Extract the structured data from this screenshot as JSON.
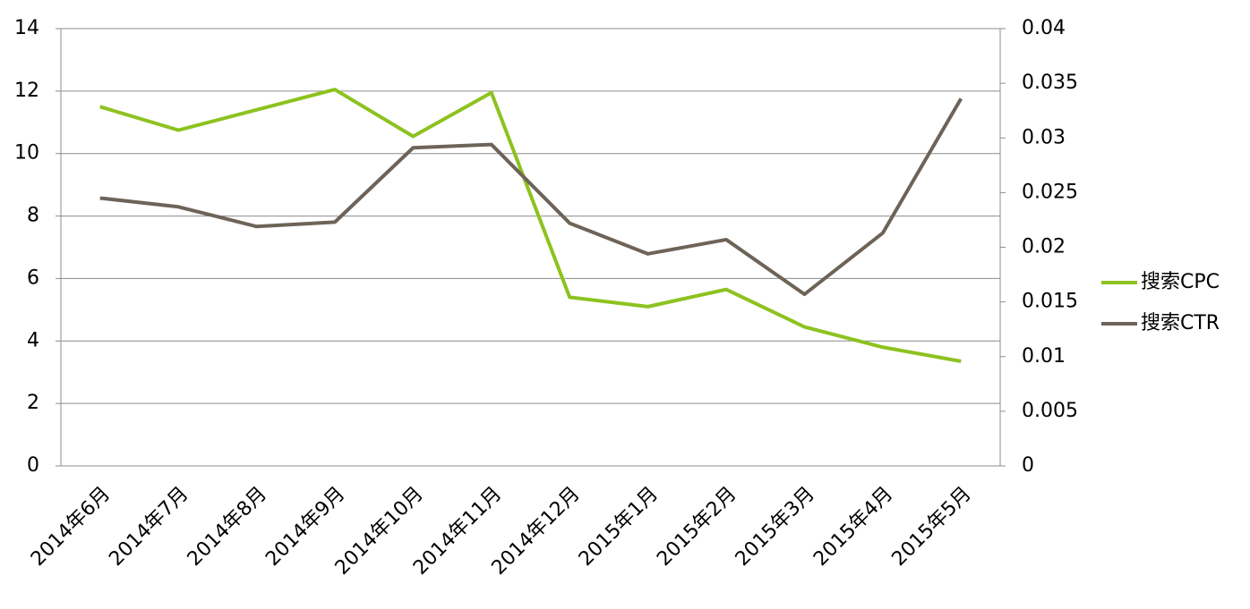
{
  "chart_data": {
    "type": "line",
    "categories": [
      "2014年6月",
      "2014年7月",
      "2014年8月",
      "2014年9月",
      "2014年10月",
      "2014年11月",
      "2014年12月",
      "2015年1月",
      "2015年2月",
      "2015年3月",
      "2015年4月",
      "2015年5月"
    ],
    "series": [
      {
        "name": "搜索CPC",
        "color": "#8dc21f",
        "values": [
          11.5,
          10.75,
          11.4,
          12.05,
          10.55,
          11.95,
          5.4,
          5.1,
          5.65,
          4.45,
          3.8,
          3.35
        ]
      },
      {
        "name": "搜索CTR",
        "color": "#6e6358",
        "axis": "y2",
        "values": [
          0.0245,
          0.0237,
          0.0219,
          0.0223,
          0.0291,
          0.0294,
          0.0222,
          0.0194,
          0.0207,
          0.0157,
          0.0213,
          0.0336
        ]
      }
    ],
    "ylim": [
      0,
      14
    ],
    "yticks": [
      0,
      2,
      4,
      6,
      8,
      10,
      12,
      14
    ],
    "y2lim": [
      0,
      0.04
    ],
    "y2ticks": [
      0,
      0.005,
      0.01,
      0.015,
      0.02,
      0.025,
      0.03,
      0.035,
      0.04
    ],
    "grid": true,
    "legend": "right"
  }
}
